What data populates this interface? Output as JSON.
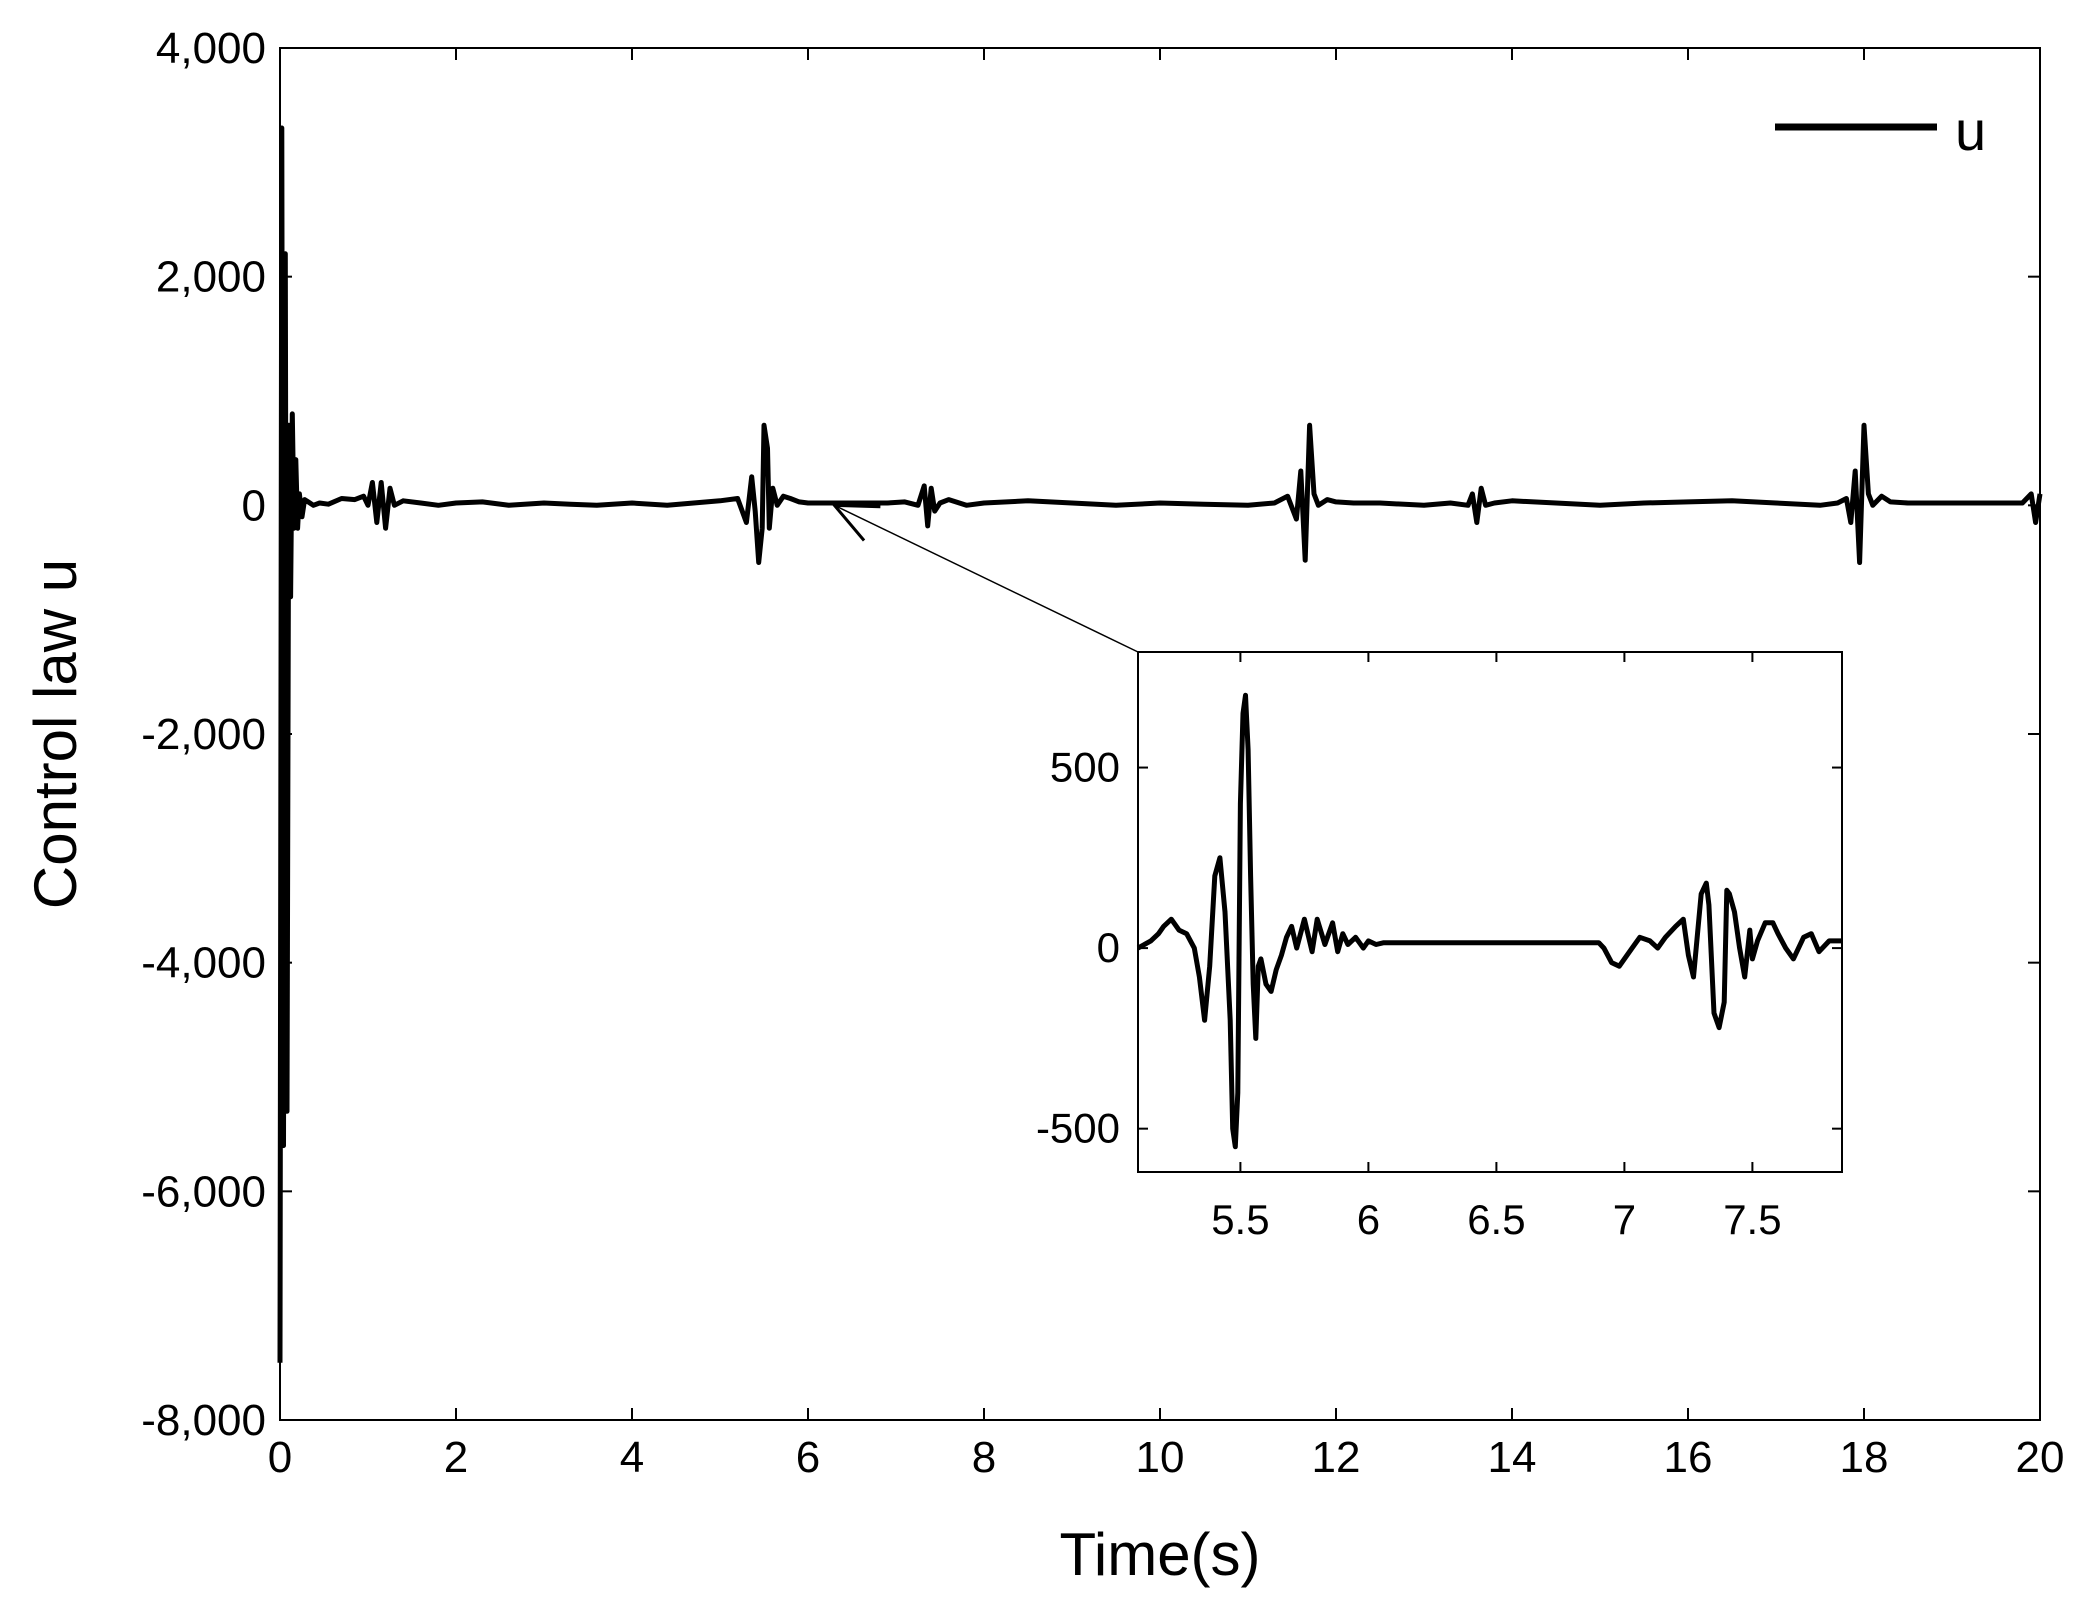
{
  "chart_data": {
    "type": "line",
    "xlabel": "Time(s)",
    "ylabel": "Control law u",
    "xlim": [
      0,
      20
    ],
    "ylim": [
      -8000,
      4000
    ],
    "x_ticks": [
      0,
      2,
      4,
      6,
      8,
      10,
      12,
      14,
      16,
      18,
      20
    ],
    "x_tick_labels": [
      "0",
      "2",
      "4",
      "6",
      "8",
      "10",
      "12",
      "14",
      "16",
      "18",
      "20"
    ],
    "y_ticks": [
      4000,
      2000,
      0,
      -2000,
      -4000,
      -6000,
      -8000
    ],
    "y_tick_labels": [
      "4,000",
      "2,000",
      "0",
      "-2,000",
      "-4,000",
      "-6,000",
      "-8,000"
    ],
    "legend": {
      "placement": "top-right",
      "entries": [
        "u"
      ]
    },
    "grid": false,
    "series": [
      {
        "name": "u",
        "color": "#000000",
        "x": [
          0,
          0.02,
          0.04,
          0.06,
          0.08,
          0.1,
          0.12,
          0.14,
          0.16,
          0.18,
          0.2,
          0.22,
          0.25,
          0.28,
          0.32,
          0.38,
          0.45,
          0.55,
          0.7,
          0.85,
          0.95,
          1.0,
          1.05,
          1.1,
          1.15,
          1.2,
          1.25,
          1.3,
          1.4,
          1.6,
          1.8,
          2.0,
          2.3,
          2.6,
          3.0,
          3.3,
          3.6,
          4.0,
          4.4,
          4.7,
          5.0,
          5.2,
          5.3,
          5.36,
          5.4,
          5.44,
          5.48,
          5.5,
          5.54,
          5.56,
          5.6,
          5.65,
          5.72,
          5.8,
          5.9,
          6.0,
          6.2,
          6.5,
          6.9,
          7.1,
          7.25,
          7.32,
          7.36,
          7.4,
          7.44,
          7.5,
          7.6,
          7.8,
          8.0,
          8.5,
          9.0,
          9.5,
          10.0,
          10.5,
          11.0,
          11.3,
          11.45,
          11.55,
          11.6,
          11.65,
          11.7,
          11.75,
          11.8,
          11.9,
          12.0,
          12.2,
          12.5,
          13.0,
          13.3,
          13.5,
          13.55,
          13.6,
          13.65,
          13.7,
          13.8,
          14.0,
          14.5,
          15.0,
          15.5,
          16.0,
          16.5,
          17.0,
          17.5,
          17.7,
          17.8,
          17.85,
          17.9,
          17.95,
          18.0,
          18.05,
          18.1,
          18.2,
          18.3,
          18.5,
          19.0,
          19.5,
          19.8,
          19.9,
          19.95,
          20.0
        ],
        "values": [
          -7500,
          3300,
          -5600,
          2200,
          -5300,
          700,
          -800,
          800,
          -200,
          400,
          -200,
          100,
          -100,
          50,
          30,
          0,
          20,
          10,
          60,
          50,
          80,
          0,
          200,
          -150,
          200,
          -200,
          150,
          0,
          40,
          20,
          0,
          20,
          30,
          0,
          20,
          10,
          0,
          20,
          0,
          20,
          40,
          60,
          -150,
          250,
          -50,
          -500,
          -200,
          700,
          500,
          -200,
          150,
          0,
          80,
          60,
          30,
          20,
          20,
          20,
          20,
          30,
          0,
          170,
          -180,
          150,
          -50,
          20,
          50,
          0,
          20,
          40,
          20,
          0,
          20,
          10,
          0,
          20,
          80,
          -120,
          300,
          -480,
          700,
          100,
          0,
          50,
          30,
          20,
          20,
          0,
          20,
          0,
          100,
          -150,
          150,
          0,
          20,
          40,
          20,
          0,
          20,
          30,
          40,
          20,
          0,
          20,
          60,
          -150,
          300,
          -500,
          700,
          100,
          0,
          80,
          30,
          20,
          20,
          20,
          20,
          100,
          -150,
          100
        ]
      }
    ],
    "inset": {
      "xlim": [
        5.1,
        7.85
      ],
      "ylim": [
        -620,
        820
      ],
      "x_ticks": [
        5.5,
        6,
        6.5,
        7,
        7.5
      ],
      "x_tick_labels": [
        "5.5",
        "6",
        "6.5",
        "7",
        "7.5"
      ],
      "y_ticks": [
        500,
        0,
        -500
      ],
      "y_tick_labels": [
        "500",
        "0",
        "-500"
      ],
      "source_point": {
        "x": 6.3,
        "y": 0
      },
      "series": [
        {
          "name": "u",
          "x": [
            5.1,
            5.15,
            5.18,
            5.2,
            5.23,
            5.26,
            5.29,
            5.32,
            5.34,
            5.36,
            5.38,
            5.4,
            5.42,
            5.44,
            5.46,
            5.47,
            5.48,
            5.49,
            5.5,
            5.51,
            5.52,
            5.53,
            5.54,
            5.55,
            5.56,
            5.57,
            5.58,
            5.6,
            5.62,
            5.64,
            5.66,
            5.68,
            5.7,
            5.72,
            5.75,
            5.78,
            5.8,
            5.83,
            5.86,
            5.88,
            5.9,
            5.92,
            5.95,
            5.98,
            6.0,
            6.03,
            6.06,
            6.1,
            6.15,
            6.2,
            6.3,
            6.4,
            6.5,
            6.6,
            6.7,
            6.8,
            6.9,
            6.92,
            6.95,
            6.98,
            7.0,
            7.03,
            7.06,
            7.1,
            7.13,
            7.16,
            7.2,
            7.23,
            7.25,
            7.27,
            7.3,
            7.32,
            7.33,
            7.35,
            7.37,
            7.39,
            7.4,
            7.41,
            7.43,
            7.45,
            7.47,
            7.49,
            7.5,
            7.52,
            7.55,
            7.58,
            7.6,
            7.63,
            7.66,
            7.7,
            7.73,
            7.76,
            7.8,
            7.85
          ],
          "values": [
            0,
            20,
            40,
            60,
            80,
            50,
            40,
            0,
            -80,
            -200,
            -50,
            200,
            250,
            100,
            -200,
            -500,
            -550,
            -400,
            400,
            650,
            700,
            550,
            200,
            -100,
            -250,
            -50,
            -30,
            -100,
            -120,
            -60,
            -20,
            30,
            60,
            0,
            80,
            -10,
            80,
            10,
            70,
            -10,
            40,
            10,
            30,
            0,
            20,
            10,
            15,
            15,
            15,
            15,
            15,
            15,
            15,
            15,
            15,
            15,
            15,
            0,
            -40,
            -50,
            -30,
            0,
            30,
            20,
            0,
            30,
            60,
            80,
            -20,
            -80,
            150,
            180,
            120,
            -180,
            -220,
            -150,
            160,
            150,
            100,
            0,
            -80,
            50,
            -30,
            20,
            70,
            70,
            40,
            0,
            -30,
            30,
            40,
            -10,
            20,
            20
          ]
        }
      ]
    }
  }
}
